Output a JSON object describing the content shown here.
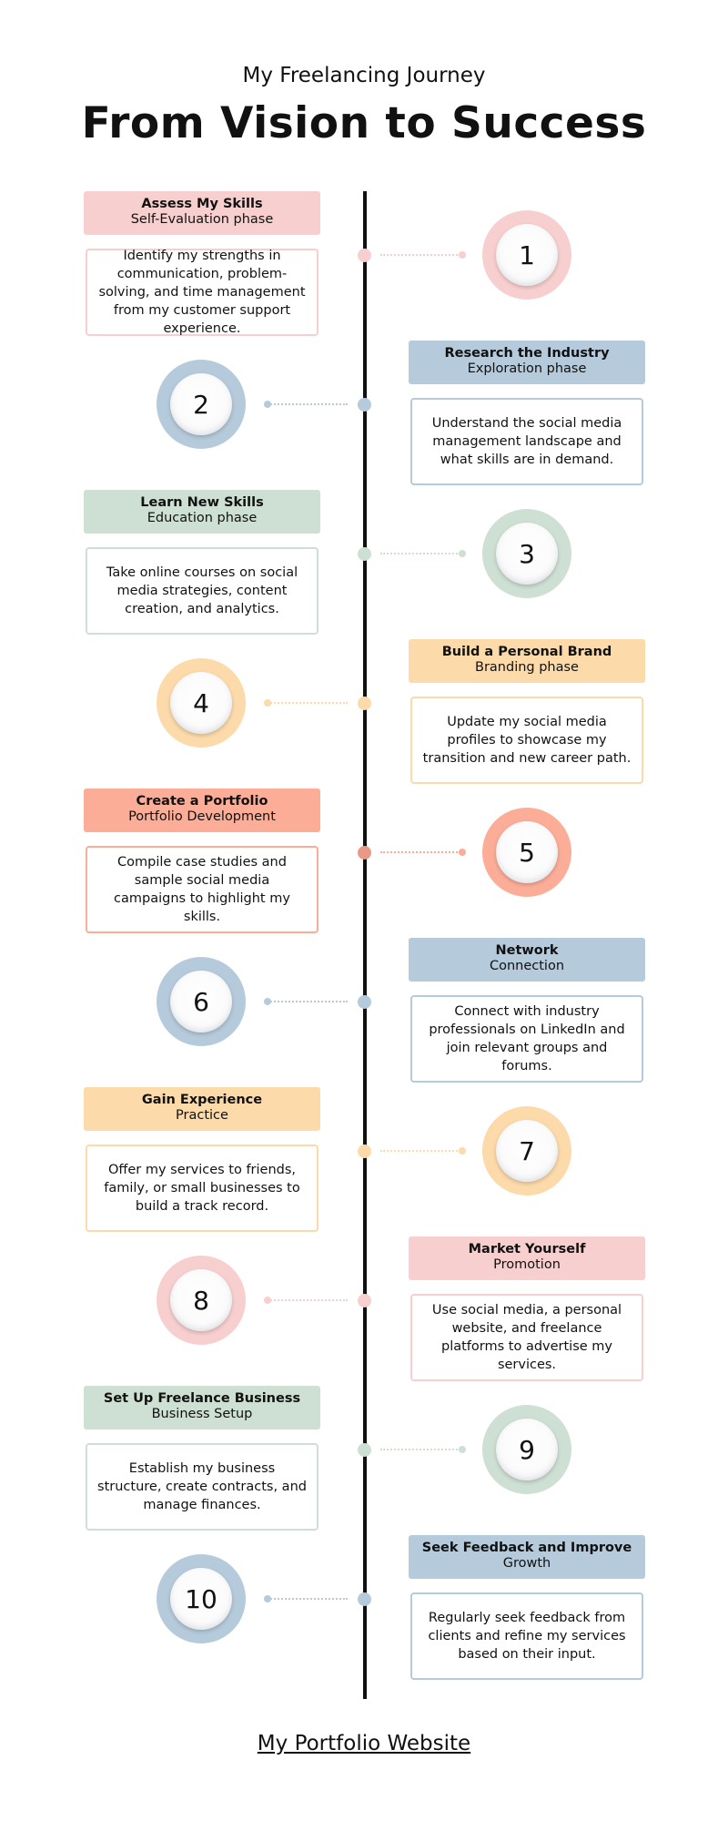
{
  "header": {
    "subtitle": "My Freelancing Journey",
    "title": "From Vision to Success"
  },
  "steps": [
    {
      "number": "1",
      "title": "Assess My Skills",
      "phase": "Self-Evaluation phase",
      "description": "Identify my strengths in communication, problem-solving, and time management from my customer support experience.",
      "color": "#f8cfcf"
    },
    {
      "number": "2",
      "title": "Research the Industry",
      "phase": "Exploration phase",
      "description": "Understand the social media management landscape and what skills are in demand.",
      "color": "#b5cadb"
    },
    {
      "number": "3",
      "title": "Learn New Skills",
      "phase": "Education phase",
      "description": "Take online courses on social media strategies, content creation, and analytics.",
      "color": "#cde0d3"
    },
    {
      "number": "4",
      "title": "Build a Personal Brand",
      "phase": "Branding phase",
      "description": "Update my social media profiles to showcase my transition and new career path.",
      "color": "#fcdaaa"
    },
    {
      "number": "5",
      "title": "Create a Portfolio",
      "phase": "Portfolio Development",
      "description": "Compile case studies and sample social media campaigns to highlight my skills.",
      "color": "#fbad98"
    },
    {
      "number": "6",
      "title": "Network",
      "phase": "Connection",
      "description": "Connect with industry professionals on LinkedIn and join relevant groups and forums.",
      "color": "#b5cadb"
    },
    {
      "number": "7",
      "title": "Gain Experience",
      "phase": "Practice",
      "description": "Offer my services to friends, family, or small businesses to build a track record.",
      "color": "#fcdaaa"
    },
    {
      "number": "8",
      "title": "Market Yourself",
      "phase": "Promotion",
      "description": "Use social media, a personal website, and freelance platforms to advertise my services.",
      "color": "#f8cfcf"
    },
    {
      "number": "9",
      "title": "Set Up Freelance Business",
      "phase": "Business Setup",
      "description": "Establish my business structure, create contracts, and manage finances.",
      "color": "#cde0d3"
    },
    {
      "number": "10",
      "title": "Seek Feedback and Improve",
      "phase": "Growth",
      "description": "Regularly seek feedback from clients and refine my services based on their input.",
      "color": "#b5cadb"
    }
  ],
  "footer": {
    "link": "My Portfolio Website"
  }
}
